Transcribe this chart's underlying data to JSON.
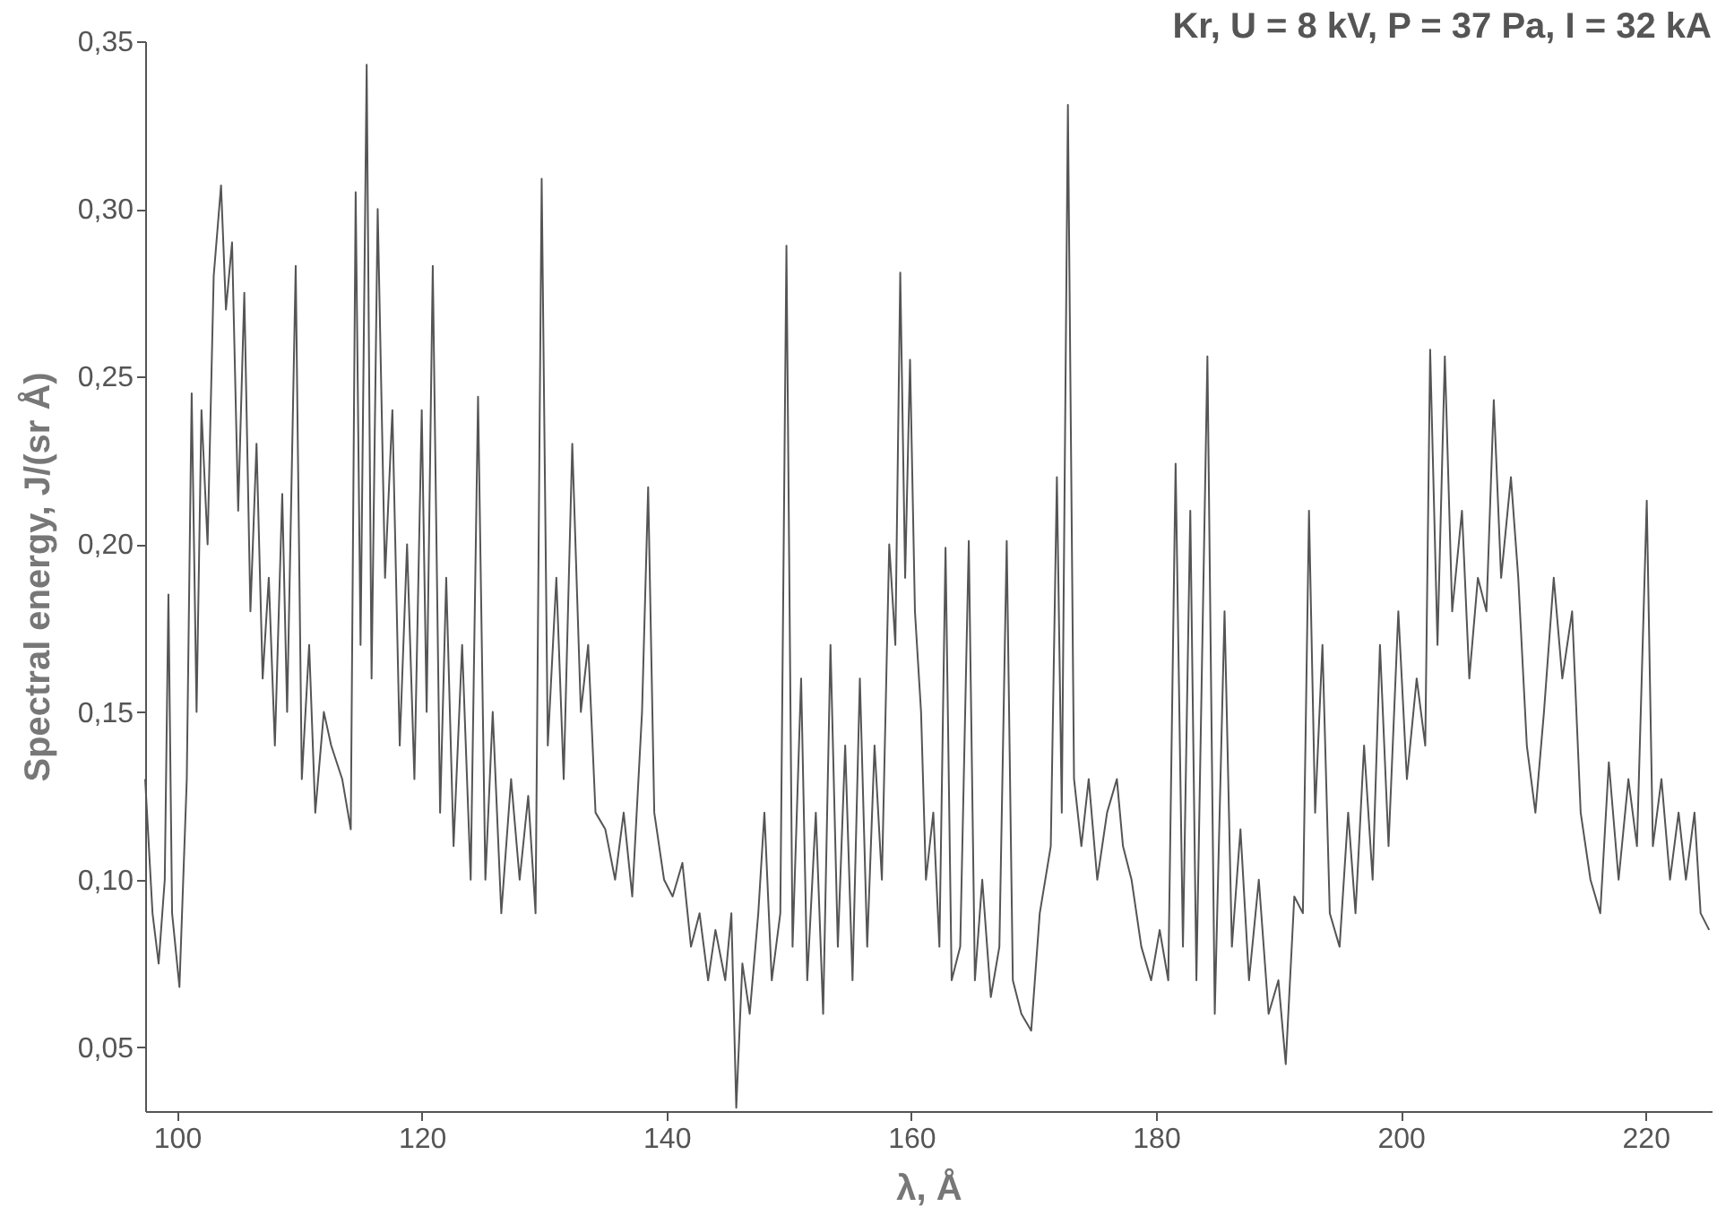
{
  "chart_data": {
    "type": "line",
    "title": "Kr, U = 8 kV, P = 37 Pa, I = 32 kA",
    "xlabel": "λ, Å",
    "ylabel": "Spectral energy, J/(sr Å)",
    "xlim": [
      97.4,
      225.4
    ],
    "ylim": [
      0.031,
      0.35
    ],
    "xticks": [
      100,
      120,
      140,
      160,
      180,
      200,
      220
    ],
    "yticks": [
      {
        "value": 0.05,
        "label": "0,05"
      },
      {
        "value": 0.1,
        "label": "0,10"
      },
      {
        "value": 0.15,
        "label": "0,15"
      },
      {
        "value": 0.2,
        "label": "0,20"
      },
      {
        "value": 0.25,
        "label": "0,25"
      },
      {
        "value": 0.3,
        "label": "0,30"
      },
      {
        "value": 0.35,
        "label": "0,35"
      }
    ],
    "grid": false,
    "marker": "none",
    "line_style": "solid",
    "series": [
      {
        "color": "#555555",
        "x": [
          97.4,
          98,
          98.5,
          99,
          99.3,
          99.6,
          100.2,
          100.8,
          101.2,
          101.6,
          102,
          102.5,
          103,
          103.6,
          104,
          104.5,
          105,
          105.5,
          106,
          106.5,
          107,
          107.5,
          108,
          108.6,
          109,
          109.7,
          110.2,
          110.8,
          111.3,
          112,
          112.6,
          113.5,
          114.2,
          114.6,
          115,
          115.5,
          115.9,
          116.4,
          117,
          117.6,
          118.2,
          118.8,
          119.4,
          120,
          120.4,
          120.9,
          121.5,
          122,
          122.6,
          123.3,
          124,
          124.6,
          125.2,
          125.8,
          126.5,
          127.3,
          128,
          128.7,
          129.3,
          129.8,
          130.3,
          131,
          131.6,
          132.3,
          133,
          133.6,
          134.2,
          135,
          135.8,
          136.5,
          137.2,
          138,
          138.5,
          139,
          139.8,
          140.5,
          141.3,
          142,
          142.7,
          143.4,
          144,
          144.8,
          145.3,
          145.7,
          146.2,
          146.8,
          147.5,
          148,
          148.6,
          149.3,
          149.8,
          150.3,
          151,
          151.5,
          152.2,
          152.8,
          153.4,
          154,
          154.6,
          155.2,
          155.8,
          156.4,
          157,
          157.6,
          158.2,
          158.7,
          159.1,
          159.5,
          159.9,
          160.3,
          160.8,
          161.2,
          161.8,
          162.3,
          162.8,
          163.3,
          164,
          164.7,
          165.2,
          165.8,
          166.5,
          167.2,
          167.8,
          168.3,
          169,
          169.8,
          170.5,
          171.4,
          171.9,
          172.3,
          172.8,
          173.3,
          173.9,
          174.5,
          175.2,
          176,
          176.8,
          177.3,
          178,
          178.8,
          179.6,
          180.3,
          181,
          181.6,
          182.2,
          182.8,
          183.3,
          184.2,
          184.8,
          185.6,
          186.2,
          186.9,
          187.6,
          188.4,
          189.2,
          190,
          190.6,
          191.3,
          192,
          192.5,
          193,
          193.6,
          194.2,
          195,
          195.7,
          196.3,
          197,
          197.7,
          198.3,
          199,
          199.8,
          200.5,
          201.3,
          202,
          202.4,
          203,
          203.6,
          204.2,
          205,
          205.6,
          206.3,
          207,
          207.6,
          208.2,
          209,
          209.6,
          210.3,
          211,
          211.7,
          212.5,
          213.2,
          214,
          214.7,
          215.5,
          216.3,
          217,
          217.8,
          218.6,
          219.3,
          220.1,
          220.6,
          221.3,
          222,
          222.7,
          223.3,
          224,
          224.5,
          225.2
        ],
        "values": [
          0.13,
          0.09,
          0.075,
          0.1,
          0.185,
          0.09,
          0.068,
          0.13,
          0.245,
          0.15,
          0.24,
          0.2,
          0.28,
          0.307,
          0.27,
          0.29,
          0.21,
          0.275,
          0.18,
          0.23,
          0.16,
          0.19,
          0.14,
          0.215,
          0.15,
          0.283,
          0.13,
          0.17,
          0.12,
          0.15,
          0.14,
          0.13,
          0.115,
          0.305,
          0.17,
          0.343,
          0.16,
          0.3,
          0.19,
          0.24,
          0.14,
          0.2,
          0.13,
          0.24,
          0.15,
          0.283,
          0.12,
          0.19,
          0.11,
          0.17,
          0.1,
          0.244,
          0.1,
          0.15,
          0.09,
          0.13,
          0.1,
          0.125,
          0.09,
          0.309,
          0.14,
          0.19,
          0.13,
          0.23,
          0.15,
          0.17,
          0.12,
          0.115,
          0.1,
          0.12,
          0.095,
          0.15,
          0.217,
          0.12,
          0.1,
          0.095,
          0.105,
          0.08,
          0.09,
          0.07,
          0.085,
          0.07,
          0.09,
          0.032,
          0.075,
          0.06,
          0.09,
          0.12,
          0.07,
          0.09,
          0.289,
          0.08,
          0.16,
          0.07,
          0.12,
          0.06,
          0.17,
          0.08,
          0.14,
          0.07,
          0.16,
          0.08,
          0.14,
          0.1,
          0.2,
          0.17,
          0.281,
          0.19,
          0.255,
          0.18,
          0.15,
          0.1,
          0.12,
          0.08,
          0.199,
          0.07,
          0.08,
          0.201,
          0.07,
          0.1,
          0.065,
          0.08,
          0.201,
          0.07,
          0.06,
          0.055,
          0.09,
          0.11,
          0.22,
          0.12,
          0.331,
          0.13,
          0.11,
          0.13,
          0.1,
          0.12,
          0.13,
          0.11,
          0.1,
          0.08,
          0.07,
          0.085,
          0.07,
          0.224,
          0.08,
          0.21,
          0.07,
          0.256,
          0.06,
          0.18,
          0.08,
          0.115,
          0.07,
          0.1,
          0.06,
          0.07,
          0.045,
          0.095,
          0.09,
          0.21,
          0.12,
          0.17,
          0.09,
          0.08,
          0.12,
          0.09,
          0.14,
          0.1,
          0.17,
          0.11,
          0.18,
          0.13,
          0.16,
          0.14,
          0.258,
          0.17,
          0.256,
          0.18,
          0.21,
          0.16,
          0.19,
          0.18,
          0.243,
          0.19,
          0.22,
          0.19,
          0.14,
          0.12,
          0.15,
          0.19,
          0.16,
          0.18,
          0.12,
          0.1,
          0.09,
          0.135,
          0.1,
          0.13,
          0.11,
          0.213,
          0.11,
          0.13,
          0.1,
          0.12,
          0.1,
          0.12,
          0.09,
          0.085
        ]
      }
    ]
  }
}
